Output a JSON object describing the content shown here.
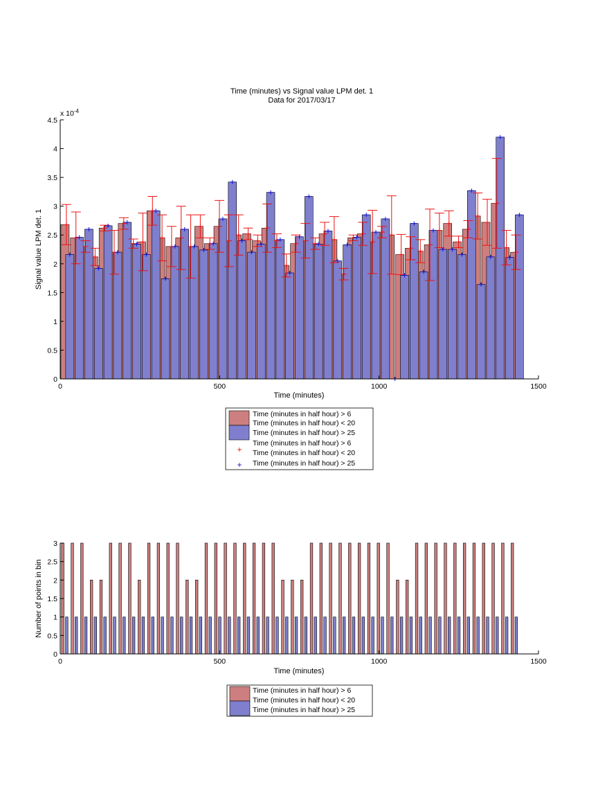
{
  "colors": {
    "red_bar": "#cd7f7f",
    "blue_bar": "#7f7fcd",
    "red_marker": "#ee1111",
    "blue_marker": "#1111cc",
    "axis": "#000000"
  },
  "chart_data": [
    {
      "type": "bar",
      "title": "Time (minutes) vs Signal value LPM det. 1",
      "subtitle": "Data for 2017/03/17",
      "xlabel": "Time (minutes)",
      "ylabel": "Signal value LPM det. 1",
      "y_exponent": "x 10",
      "y_exponent_power": "-4",
      "xlim": [
        0,
        1500
      ],
      "ylim": [
        0,
        4.5
      ],
      "xticks": [
        "0",
        "500",
        "1000",
        "1500"
      ],
      "yticks": [
        "0",
        "0.5",
        "1",
        "1.5",
        "2",
        "2.5",
        "3",
        "3.5",
        "4",
        "4.5"
      ],
      "grid": false,
      "legend_position": "below",
      "legend": [
        "Time (minutes in half hour) > 6",
        "Time (minutes in half hour) < 20",
        "Time (minutes in half hour) > 25",
        "Time (minutes in half hour) > 6",
        "Time (minutes in half hour) < 20",
        "Time (minutes in half hour) > 25"
      ],
      "bins": {
        "x_red": [
          15,
          45,
          75,
          105,
          135,
          165,
          195,
          225,
          255,
          285,
          315,
          345,
          375,
          405,
          435,
          465,
          495,
          525,
          555,
          585,
          615,
          645,
          675,
          705,
          735,
          765,
          795,
          825,
          855,
          885,
          915,
          945,
          975,
          1005,
          1035,
          1065,
          1095,
          1125,
          1155,
          1185,
          1215,
          1245,
          1275,
          1305,
          1335,
          1365,
          1395,
          1425
        ],
        "red_values": [
          2.68,
          2.45,
          2.3,
          2.12,
          2.62,
          2.2,
          2.7,
          2.35,
          2.38,
          2.92,
          2.45,
          2.3,
          2.45,
          2.3,
          2.65,
          2.35,
          2.65,
          2.4,
          2.5,
          2.52,
          2.4,
          2.62,
          2.4,
          1.97,
          2.35,
          2.4,
          2.35,
          2.52,
          2.42,
          1.82,
          2.45,
          2.52,
          2.38,
          2.55,
          2.5,
          2.16,
          2.27,
          2.22,
          2.33,
          2.58,
          2.7,
          2.38,
          2.6,
          2.83,
          2.72,
          3.05,
          2.28,
          2.2
        ],
        "red_err": [
          0.35,
          0.45,
          0.1,
          0.15,
          0.05,
          0.38,
          0.1,
          0.08,
          0.5,
          0.25,
          0.4,
          0.35,
          0.55,
          0.55,
          0.2,
          0.1,
          0.45,
          0.45,
          0.35,
          0.1,
          0.1,
          0.42,
          0.12,
          0.2,
          0.15,
          0.3,
          0.1,
          0.2,
          0.4,
          0.1,
          0.05,
          0.2,
          0.55,
          0.1,
          0.68,
          0.35,
          0.2,
          0.2,
          0.62,
          0.3,
          0.22,
          0.1,
          0.15,
          0.4,
          0.4,
          0.78,
          0.3,
          0.3
        ],
        "x_blue": [
          30,
          60,
          90,
          120,
          150,
          180,
          210,
          240,
          270,
          300,
          330,
          360,
          390,
          420,
          450,
          480,
          510,
          540,
          570,
          600,
          630,
          660,
          690,
          720,
          750,
          780,
          810,
          840,
          870,
          900,
          930,
          960,
          990,
          1020,
          1050,
          1080,
          1110,
          1140,
          1170,
          1200,
          1230,
          1260,
          1290,
          1320,
          1350,
          1380,
          1410,
          1440
        ],
        "blue_values": [
          2.16,
          2.46,
          2.6,
          1.92,
          2.66,
          2.2,
          2.72,
          2.34,
          2.16,
          2.92,
          1.74,
          2.3,
          2.6,
          2.3,
          2.24,
          2.35,
          2.78,
          3.42,
          2.4,
          2.2,
          2.34,
          3.24,
          2.42,
          1.84,
          2.47,
          3.17,
          2.34,
          2.57,
          2.05,
          2.33,
          2.46,
          2.85,
          2.55,
          2.78,
          0.0,
          1.8,
          2.7,
          1.86,
          2.58,
          2.25,
          2.25,
          2.16,
          3.27,
          1.64,
          2.12,
          4.2,
          2.11,
          2.85
        ]
      }
    },
    {
      "type": "bar",
      "title": "",
      "xlabel": "Time (minutes)",
      "ylabel": "Number of points in bin",
      "xlim": [
        0,
        1500
      ],
      "ylim": [
        0,
        3
      ],
      "xticks": [
        "0",
        "500",
        "1000",
        "1500"
      ],
      "yticks": [
        "0",
        "0.5",
        "1",
        "1.5",
        "2",
        "2.5",
        "3"
      ],
      "grid": false,
      "legend_position": "below",
      "legend": [
        "Time (minutes in half hour) > 6",
        "Time (minutes in half hour) < 20",
        "Time (minutes in half hour) > 25"
      ],
      "bins": {
        "x_red": [
          8,
          38,
          68,
          98,
          128,
          158,
          188,
          218,
          248,
          278,
          308,
          338,
          368,
          398,
          428,
          458,
          488,
          518,
          548,
          578,
          608,
          638,
          668,
          698,
          728,
          758,
          788,
          818,
          848,
          878,
          908,
          938,
          968,
          998,
          1028,
          1058,
          1088,
          1118,
          1148,
          1178,
          1208,
          1238,
          1268,
          1298,
          1328,
          1358,
          1388,
          1418
        ],
        "red_counts": [
          3,
          3,
          3,
          2,
          2,
          3,
          3,
          3,
          2,
          3,
          3,
          3,
          3,
          2,
          2,
          3,
          3,
          3,
          3,
          3,
          3,
          3,
          3,
          2,
          2,
          2,
          3,
          3,
          3,
          3,
          3,
          3,
          3,
          3,
          3,
          2,
          2,
          3,
          3,
          3,
          3,
          3,
          3,
          3,
          3,
          3,
          3,
          3
        ],
        "x_blue": [
          16,
          46,
          76,
          106,
          136,
          166,
          196,
          226,
          256,
          286,
          316,
          346,
          376,
          406,
          436,
          466,
          496,
          526,
          556,
          586,
          616,
          646,
          676,
          706,
          736,
          766,
          796,
          826,
          856,
          886,
          916,
          946,
          976,
          1006,
          1036,
          1066,
          1096,
          1126,
          1156,
          1186,
          1216,
          1246,
          1276,
          1306,
          1336,
          1366,
          1396,
          1426
        ],
        "blue_counts": [
          1,
          1,
          1,
          1,
          1,
          1,
          1,
          1,
          1,
          1,
          1,
          1,
          1,
          1,
          1,
          1,
          1,
          1,
          1,
          1,
          1,
          1,
          1,
          1,
          1,
          1,
          1,
          1,
          1,
          1,
          1,
          1,
          1,
          1,
          1,
          1,
          1,
          1,
          1,
          1,
          1,
          1,
          1,
          1,
          1,
          1,
          1,
          1
        ]
      }
    }
  ]
}
